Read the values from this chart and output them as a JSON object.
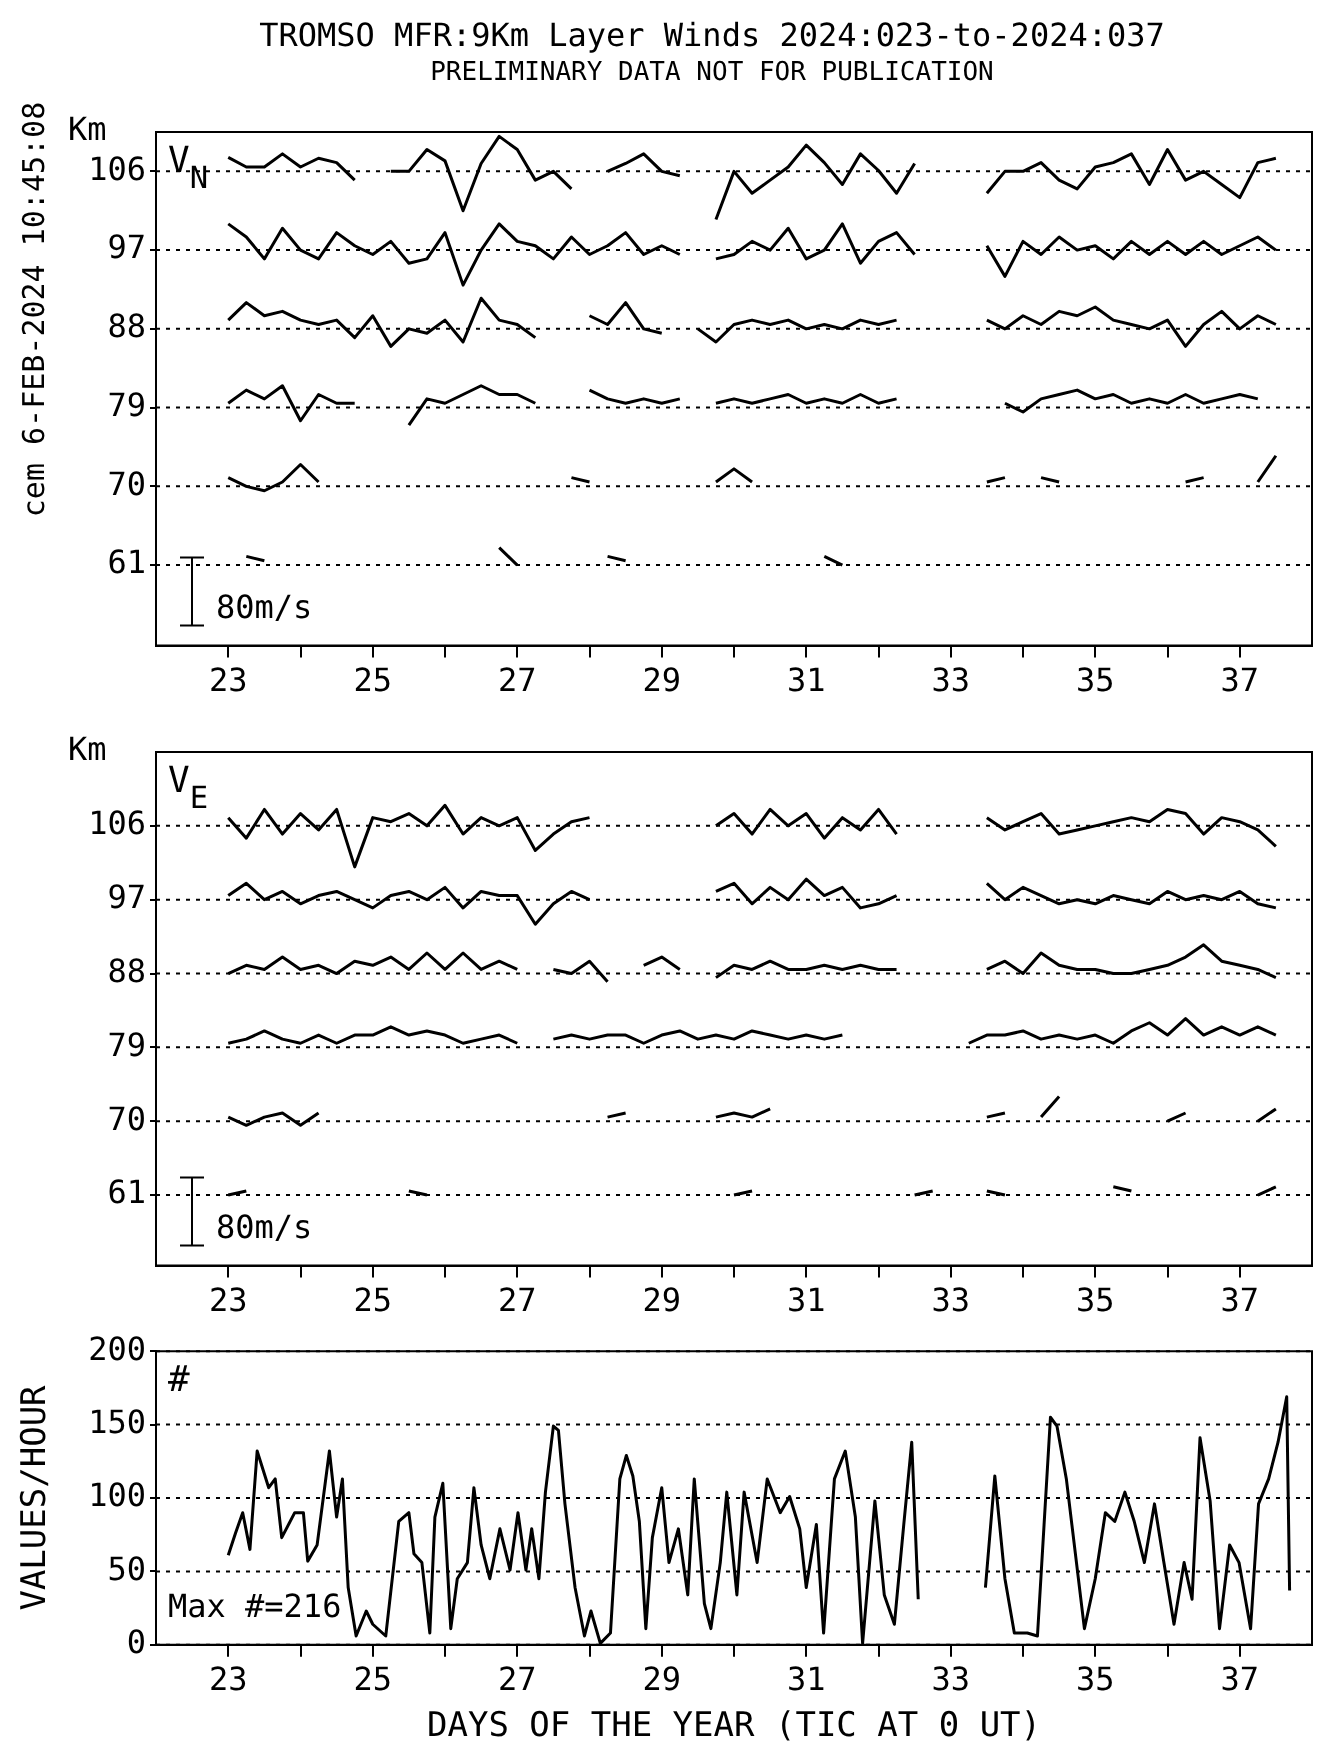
{
  "chart_data": [
    {
      "type": "line",
      "title": "TROMSO MFR:9Km Layer Winds 2024:023-to-2024:037",
      "subtitle": "PRELIMINARY DATA NOT FOR PUBLICATION",
      "ylabel": "Km",
      "annotations": [
        "V$_{N}$",
        "80m/s",
        "cem 6-FEB-2024 10:45:08"
      ],
      "xlim": [
        22,
        38
      ],
      "ylim": [
        51.8,
        110.5
      ],
      "xticks": [
        23,
        {
          "value": 24,
          "label": null
        },
        25,
        {
          "value": 26,
          "label": null
        },
        27,
        {
          "value": 28,
          "label": null
        },
        29,
        {
          "value": 30,
          "label": null
        },
        31,
        {
          "value": 32,
          "label": null
        },
        33,
        {
          "value": 34,
          "label": null
        },
        35,
        {
          "value": 36,
          "label": null
        },
        37
      ],
      "yticks": [
        61,
        70,
        79,
        88,
        97,
        106
      ],
      "grid": "y",
      "x": [
        23,
        23.25,
        23.5,
        23.75,
        24,
        24.25,
        24.5,
        24.75,
        25,
        25.25,
        25.5,
        25.75,
        26,
        26.25,
        26.5,
        26.75,
        27,
        27.25,
        27.5,
        27.75,
        28,
        28.25,
        28.5,
        28.75,
        29,
        29.25,
        29.5,
        29.75,
        30,
        30.25,
        30.5,
        30.75,
        31,
        31.25,
        31.5,
        31.75,
        32,
        32.25,
        32.5,
        32.75,
        33,
        33.25,
        33.5,
        33.75,
        34,
        34.25,
        34.5,
        34.75,
        35,
        35.25,
        35.5,
        35.75,
        36,
        36.25,
        36.5,
        36.75,
        37,
        37.25,
        37.5
      ],
      "series": [
        {
          "color": "#000000",
          "values": [
            107.6,
            106.5,
            106.5,
            108,
            106.5,
            107.5,
            107,
            105,
            null,
            106,
            106,
            108.5,
            107.2,
            101.5,
            106.9,
            110,
            108.5,
            105,
            106,
            104,
            null,
            106,
            106.9,
            108,
            106,
            105.5,
            null,
            100.5,
            106,
            103.5,
            105,
            106.5,
            109,
            107,
            104.5,
            108,
            106.1,
            103.5,
            106.9,
            null,
            null,
            null,
            103.5,
            106,
            106,
            107,
            105,
            104,
            106.5,
            107,
            108,
            104.5,
            108.5,
            105,
            106,
            104.5,
            103,
            107,
            107.5
          ]
        },
        {
          "color": "#000000",
          "values": [
            100,
            98.5,
            96,
            99.5,
            97,
            96,
            99,
            97.5,
            96.5,
            98,
            95.5,
            96,
            99,
            93,
            97,
            100,
            98,
            97.5,
            96,
            98.5,
            96.5,
            97.5,
            99,
            96.5,
            97.5,
            96.5,
            null,
            96,
            96.5,
            98,
            97,
            99.5,
            96,
            97,
            100,
            95.5,
            98,
            99,
            96.5,
            null,
            null,
            null,
            97.5,
            94,
            98,
            96.5,
            98.5,
            97,
            97.5,
            96,
            98,
            96.5,
            98,
            96.5,
            98,
            96.5,
            97.5,
            98.5,
            97
          ]
        },
        {
          "color": "#000000",
          "values": [
            89,
            91,
            89.5,
            90,
            89,
            88.5,
            89,
            87,
            89.5,
            86,
            88,
            87.5,
            89,
            86.5,
            91.5,
            89,
            88.5,
            87,
            null,
            null,
            89.5,
            88.5,
            91,
            88,
            87.5,
            null,
            88,
            86.5,
            88.5,
            89,
            88.5,
            89,
            88,
            88.5,
            88,
            89,
            88.5,
            89,
            null,
            null,
            null,
            null,
            89,
            88,
            89.5,
            88.5,
            90,
            89.5,
            90.5,
            89,
            88.5,
            88,
            89,
            86,
            88.5,
            90,
            88,
            89.5,
            88.5
          ]
        },
        {
          "color": "#000000",
          "values": [
            79.5,
            81,
            80,
            81.5,
            77.5,
            80.5,
            79.5,
            79.5,
            null,
            null,
            77,
            80,
            79.5,
            80.5,
            81.5,
            80.5,
            80.5,
            79.5,
            null,
            null,
            81,
            80,
            79.5,
            80,
            79.5,
            80,
            null,
            79.5,
            80,
            79.5,
            80,
            80.5,
            79.5,
            80,
            79.5,
            80.5,
            79.5,
            80,
            null,
            null,
            null,
            null,
            null,
            79.5,
            78.5,
            80,
            80.5,
            81,
            80,
            80.5,
            79.5,
            80,
            79.5,
            80.5,
            79.5,
            80,
            80.5,
            80,
            null
          ]
        },
        {
          "color": "#000000",
          "values": [
            71,
            70,
            69.5,
            70.5,
            72.5,
            70.5,
            null,
            null,
            null,
            null,
            null,
            null,
            null,
            null,
            null,
            null,
            null,
            null,
            null,
            71,
            70.5,
            null,
            null,
            null,
            null,
            null,
            null,
            70.5,
            72,
            70.5,
            null,
            null,
            null,
            null,
            null,
            null,
            null,
            null,
            null,
            null,
            null,
            null,
            70.5,
            71,
            null,
            71,
            70.5,
            null,
            null,
            null,
            null,
            null,
            null,
            70.5,
            71,
            null,
            null,
            70.5,
            73.5
          ]
        },
        {
          "color": "#000000",
          "values": [
            null,
            62,
            61.5,
            null,
            null,
            null,
            null,
            null,
            null,
            null,
            null,
            null,
            null,
            null,
            null,
            63,
            61,
            null,
            null,
            null,
            null,
            62,
            61.5,
            null,
            null,
            null,
            null,
            null,
            null,
            null,
            null,
            null,
            null,
            62,
            61,
            null,
            null,
            null,
            null,
            null,
            null,
            null,
            null,
            null,
            null,
            null,
            null,
            null,
            null,
            null,
            null,
            null,
            null,
            null,
            null,
            null,
            null,
            null,
            null
          ]
        }
      ]
    },
    {
      "type": "line",
      "ylabel": "Km",
      "annotations": [
        "V$_{E}$",
        "80m/s"
      ],
      "xlim": [
        22,
        38
      ],
      "ylim": [
        52.4,
        115
      ],
      "xticks": [
        23,
        {
          "value": 24,
          "label": null
        },
        25,
        {
          "value": 26,
          "label": null
        },
        27,
        {
          "value": 28,
          "label": null
        },
        29,
        {
          "value": 30,
          "label": null
        },
        31,
        {
          "value": 32,
          "label": null
        },
        33,
        {
          "value": 34,
          "label": null
        },
        35,
        {
          "value": 36,
          "label": null
        },
        37
      ],
      "yticks": [
        61,
        70,
        79,
        88,
        97,
        106
      ],
      "grid": "y",
      "x": [
        23,
        23.25,
        23.5,
        23.75,
        24,
        24.25,
        24.5,
        24.75,
        25,
        25.25,
        25.5,
        25.75,
        26,
        26.25,
        26.5,
        26.75,
        27,
        27.25,
        27.5,
        27.75,
        28,
        28.25,
        28.5,
        28.75,
        29,
        29.25,
        29.5,
        29.75,
        30,
        30.25,
        30.5,
        30.75,
        31,
        31.25,
        31.5,
        31.75,
        32,
        32.25,
        32.5,
        32.75,
        33,
        33.25,
        33.5,
        33.75,
        34,
        34.25,
        34.5,
        34.75,
        35,
        35.25,
        35.5,
        35.75,
        36,
        36.25,
        36.5,
        36.75,
        37,
        37.25,
        37.5
      ],
      "series": [
        {
          "color": "#000000",
          "values": [
            107,
            104.5,
            108,
            105,
            107.5,
            105.5,
            108,
            101,
            107,
            106.5,
            107.5,
            106,
            108.5,
            105,
            107,
            106,
            107,
            103,
            105,
            106.5,
            107,
            null,
            null,
            null,
            null,
            null,
            null,
            106,
            107.5,
            105,
            108,
            106,
            107.5,
            104.5,
            107,
            105.5,
            108,
            105,
            null,
            null,
            null,
            null,
            107,
            105.5,
            106.5,
            107.5,
            105,
            105.5,
            106,
            106.5,
            107,
            106.5,
            108,
            107.5,
            105,
            107,
            106.5,
            105.5,
            103.5
          ]
        },
        {
          "color": "#000000",
          "values": [
            97.5,
            99,
            97,
            98,
            96.5,
            97.5,
            98,
            97,
            96,
            97.5,
            98,
            97,
            98.5,
            96,
            98,
            97.5,
            97.5,
            94,
            96.5,
            98,
            97,
            null,
            null,
            null,
            null,
            null,
            null,
            98,
            99,
            96.5,
            98.5,
            97,
            99.5,
            97.5,
            98.5,
            96,
            96.5,
            97.5,
            null,
            null,
            null,
            null,
            99,
            97,
            98.5,
            97.5,
            96.5,
            97,
            96.5,
            97.5,
            97,
            96.5,
            98,
            97,
            97.5,
            97,
            98,
            96.5,
            96
          ]
        },
        {
          "color": "#000000",
          "values": [
            88,
            89,
            88.5,
            90,
            88.5,
            89,
            88,
            89.5,
            89,
            90,
            88.5,
            90.5,
            88.5,
            90.5,
            88.5,
            89.5,
            88.5,
            null,
            88.5,
            88,
            89.5,
            87,
            null,
            89,
            90,
            88.5,
            null,
            87.5,
            89,
            88.5,
            89.5,
            88.5,
            88.5,
            89,
            88.5,
            89,
            88.5,
            88.5,
            null,
            null,
            null,
            null,
            88.5,
            89.5,
            88,
            90.5,
            89,
            88.5,
            88.5,
            88,
            88,
            88.5,
            89,
            90,
            91.5,
            89.5,
            89,
            88.5,
            87.5
          ]
        },
        {
          "color": "#000000",
          "values": [
            79.5,
            80,
            81,
            80,
            79.5,
            80.5,
            79.5,
            80.5,
            80.5,
            81.5,
            80.5,
            81,
            80.5,
            79.5,
            80,
            80.5,
            79.5,
            null,
            80,
            80.5,
            80,
            80.5,
            80.5,
            79.5,
            80.5,
            81,
            80,
            80.5,
            80,
            81,
            80.5,
            80,
            80.5,
            80,
            80.5,
            null,
            null,
            null,
            null,
            null,
            null,
            79.5,
            80.5,
            80.5,
            81,
            80,
            80.5,
            80,
            80.5,
            79.5,
            81,
            82,
            80.5,
            82.5,
            80.5,
            81.5,
            80.5,
            81.5,
            80.5
          ]
        },
        {
          "color": "#000000",
          "values": [
            70.5,
            69.5,
            70.5,
            71,
            69.5,
            71,
            null,
            null,
            null,
            null,
            null,
            null,
            null,
            null,
            null,
            null,
            null,
            null,
            null,
            null,
            null,
            70.5,
            71,
            null,
            null,
            null,
            null,
            70.5,
            71,
            70.5,
            71.5,
            null,
            null,
            null,
            null,
            null,
            null,
            null,
            null,
            null,
            null,
            null,
            70.5,
            71,
            null,
            70.5,
            73,
            null,
            null,
            null,
            null,
            null,
            70,
            71,
            null,
            null,
            null,
            70,
            71.5
          ]
        },
        {
          "color": "#000000",
          "values": [
            61,
            61.5,
            null,
            null,
            null,
            null,
            null,
            null,
            null,
            null,
            61.5,
            61,
            null,
            null,
            null,
            null,
            null,
            null,
            null,
            null,
            null,
            null,
            null,
            null,
            null,
            null,
            null,
            null,
            61,
            61.5,
            null,
            null,
            null,
            null,
            null,
            null,
            null,
            null,
            61,
            61.5,
            null,
            null,
            61.5,
            61,
            null,
            null,
            null,
            null,
            null,
            62,
            61.5,
            null,
            null,
            null,
            null,
            null,
            null,
            61,
            62
          ]
        }
      ]
    },
    {
      "type": "line",
      "xlabel": "DAYS OF THE YEAR (TIC AT 0 UT)",
      "ylabel": "VALUES/HOUR",
      "annotations": [
        "#",
        "Max #=216"
      ],
      "xlim": [
        22,
        38
      ],
      "ylim": [
        0,
        200
      ],
      "xticks": [
        23,
        {
          "value": 24,
          "label": null
        },
        25,
        {
          "value": 26,
          "label": null
        },
        27,
        {
          "value": 28,
          "label": null
        },
        29,
        {
          "value": 30,
          "label": null
        },
        31,
        {
          "value": 32,
          "label": null
        },
        33,
        {
          "value": 34,
          "label": null
        },
        35,
        {
          "value": 36,
          "label": null
        },
        37
      ],
      "yticks": [
        0,
        50,
        100,
        150,
        200
      ],
      "grid": "y",
      "x": [
        23,
        23.1,
        23.2,
        23.3,
        23.4,
        23.56,
        23.65,
        23.74,
        23.92,
        24.04,
        24.1,
        24.23,
        24.4,
        24.5,
        24.58,
        24.66,
        24.77,
        24.91,
        25,
        25.18,
        25.36,
        25.5,
        25.57,
        25.68,
        25.79,
        25.86,
        25.97,
        26.08,
        26.17,
        26.31,
        26.4,
        26.5,
        26.62,
        26.76,
        26.9,
        27.01,
        27.12,
        27.2,
        27.3,
        27.39,
        27.5,
        27.57,
        27.66,
        27.8,
        27.93,
        28.02,
        28.15,
        28.29,
        28.42,
        28.51,
        28.6,
        28.69,
        28.78,
        28.87,
        29,
        29.1,
        29.23,
        29.36,
        29.45,
        29.59,
        29.68,
        29.81,
        29.9,
        30.04,
        30.14,
        30.32,
        30.46,
        30.64,
        30.77,
        30.91,
        31,
        31.14,
        31.24,
        31.39,
        31.54,
        31.68,
        31.78,
        31.95,
        32.08,
        32.22,
        32.35,
        32.46,
        32.55,
        33,
        33.48,
        33.61,
        33.75,
        33.88,
        34.06,
        34.2,
        34.38,
        34.47,
        34.6,
        34.74,
        34.85,
        35,
        35.14,
        35.27,
        35.41,
        35.54,
        35.68,
        35.82,
        35.95,
        36.09,
        36.23,
        36.34,
        36.45,
        36.59,
        36.72,
        36.86,
        36.99,
        37.15,
        37.26,
        37.4,
        37.53,
        37.65,
        37.69
      ],
      "series": [
        {
          "color": "#000000",
          "values": [
            61,
            76,
            90,
            65,
            132,
            107,
            113,
            73,
            90,
            90,
            57,
            68,
            132,
            87,
            113,
            39,
            6,
            23,
            14,
            6,
            84,
            90,
            62,
            56,
            8,
            87,
            110,
            11,
            45,
            56,
            107,
            68,
            45,
            79,
            51,
            90,
            51,
            79,
            45,
            104,
            149,
            146,
            96,
            39,
            6,
            23,
            1,
            8,
            113,
            129,
            115,
            84,
            11,
            73,
            107,
            56,
            79,
            34,
            113,
            28,
            11,
            56,
            104,
            34,
            104,
            56,
            113,
            90,
            101,
            79,
            39,
            82,
            8,
            113,
            132,
            87,
            1,
            98,
            34,
            14,
            82,
            138,
            31,
            null,
            39,
            115,
            45,
            8,
            8,
            6,
            155,
            149,
            113,
            56,
            11,
            45,
            90,
            84,
            104,
            84,
            56,
            96,
            56,
            14,
            56,
            31,
            141,
            98,
            11,
            68,
            56,
            11,
            96,
            113,
            138,
            169,
            37
          ]
        }
      ]
    }
  ]
}
